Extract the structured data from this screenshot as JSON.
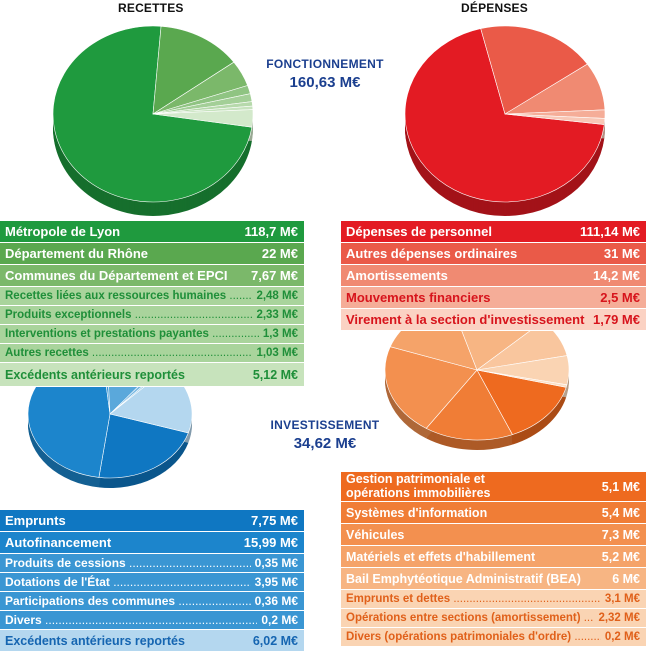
{
  "headers": {
    "recettes": "RECETTES",
    "depenses": "DÉPENSES"
  },
  "fonctionnement": {
    "title": "FONCTIONNEMENT",
    "total": "160,63 M€"
  },
  "investissement": {
    "title": "INVESTISSEMENT",
    "total": "34,62 M€"
  },
  "chart_data": [
    {
      "type": "pie",
      "title": "RECETTES",
      "group": "FONCTIONNEMENT",
      "unit": "M€",
      "categories": [
        "Métropole de Lyon",
        "Département du Rhône",
        "Communes du Département et EPCI",
        "Recettes liées aux ressources humaines",
        "Produits exceptionnels",
        "Interventions et prestations payantes",
        "Autres recettes",
        "Excédents antérieurs reportés"
      ],
      "values": [
        118.7,
        22,
        7.67,
        2.48,
        2.33,
        1.3,
        1.03,
        5.12
      ],
      "value_labels": [
        "118,7 M€",
        "22 M€",
        "7,67 M€",
        "2,48 M€",
        "2,33 M€",
        "1,3 M€",
        "1,03 M€",
        "5,12 M€"
      ],
      "colors": [
        "#1f9a3e",
        "#5aa84f",
        "#7bb86a",
        "#8fc482",
        "#a3cf97",
        "#b6d9ab",
        "#c6e2bd",
        "#d3e9cb"
      ]
    },
    {
      "type": "pie",
      "title": "DÉPENSES",
      "group": "FONCTIONNEMENT",
      "unit": "M€",
      "categories": [
        "Dépenses de personnel",
        "Autres dépenses ordinaires",
        "Amortissements",
        "Mouvements financiers",
        "Virement à la section d'investissement"
      ],
      "values": [
        111.14,
        31,
        14.2,
        2.5,
        1.79
      ],
      "value_labels": [
        "111,14 M€",
        "31 M€",
        "14,2 M€",
        "2,5 M€",
        "1,79 M€"
      ],
      "colors": [
        "#e31b23",
        "#ea5a48",
        "#f08a72",
        "#f5ad98",
        "#f8c7b6"
      ]
    },
    {
      "type": "pie",
      "title": "RECETTES",
      "group": "INVESTISSEMENT",
      "unit": "M€",
      "categories": [
        "Emprunts",
        "Autofinancement",
        "Produits de cessions",
        "Dotations de l'État",
        "Participations des communes",
        "Divers",
        "Excédents antérieurs reportés"
      ],
      "values": [
        7.75,
        15.99,
        0.35,
        3.95,
        0.36,
        0.2,
        6.02
      ],
      "value_labels": [
        "7,75 M€",
        "15,99 M€",
        "0,35 M€",
        "3,95 M€",
        "0,36 M€",
        "0,2 M€",
        "6,02 M€"
      ],
      "colors": [
        "#0f77c2",
        "#1c85cc",
        "#3a96d3",
        "#5aa8db",
        "#7ab9e2",
        "#9ccbea",
        "#b4d7ef"
      ]
    },
    {
      "type": "pie",
      "title": "DÉPENSES",
      "group": "INVESTISSEMENT",
      "unit": "M€",
      "categories": [
        "Gestion patrimoniale et opérations immobilières",
        "Systèmes d'information",
        "Véhicules",
        "Matériels et effets d'habillement",
        "Bail Emphytéotique Administratif (BEA)",
        "Emprunts et dettes",
        "Opérations entre sections (amortissement)",
        "Divers (opérations patrimoniales d'ordre)"
      ],
      "values": [
        5.1,
        5.4,
        7.3,
        5.2,
        6,
        3.1,
        2.32,
        0.2
      ],
      "value_labels": [
        "5,1 M€",
        "5,4 M€",
        "7,3 M€",
        "5,2 M€",
        "6 M€",
        "3,1 M€",
        "2,32 M€",
        "0,2 M€"
      ],
      "colors": [
        "#ee6a1f",
        "#f07d36",
        "#f3904f",
        "#f5a369",
        "#f7b583",
        "#f9c69e",
        "#fad4b3",
        "#fcdfc5"
      ]
    }
  ],
  "tables": {
    "fr": [
      {
        "label": "Métropole de Lyon",
        "value": "118,7 M€"
      },
      {
        "label": "Département du Rhône",
        "value": "22 M€"
      },
      {
        "label": "Communes du Département et EPCI",
        "value": "7,67 M€"
      },
      {
        "label": "Recettes liées aux ressources humaines",
        "value": "2,48 M€"
      },
      {
        "label": "Produits exceptionnels",
        "value": "2,33 M€"
      },
      {
        "label": "Interventions et prestations payantes",
        "value": "1,3 M€"
      },
      {
        "label": "Autres recettes",
        "value": "1,03 M€"
      },
      {
        "label": "Excédents antérieurs reportés",
        "value": "5,12 M€"
      }
    ],
    "fd": [
      {
        "label": "Dépenses de personnel",
        "value": "111,14 M€"
      },
      {
        "label": "Autres dépenses ordinaires",
        "value": "31 M€"
      },
      {
        "label": "Amortissements",
        "value": "14,2 M€"
      },
      {
        "label": "Mouvements financiers",
        "value": "2,5 M€"
      },
      {
        "label": "Virement à la section d'investissement",
        "value": "1,79 M€"
      }
    ],
    "ir": [
      {
        "label": "Emprunts",
        "value": "7,75 M€"
      },
      {
        "label": "Autofinancement",
        "value": "15,99 M€"
      },
      {
        "label": "Produits de cessions",
        "value": "0,35 M€"
      },
      {
        "label": "Dotations de l'État",
        "value": "3,95 M€"
      },
      {
        "label": "Participations des communes",
        "value": "0,36 M€"
      },
      {
        "label": "Divers",
        "value": "0,2 M€"
      },
      {
        "label": "Excédents antérieurs reportés",
        "value": "6,02 M€"
      }
    ],
    "id": [
      {
        "label": "Gestion patrimoniale et\nopérations immobilières",
        "value": "5,1 M€"
      },
      {
        "label": "Systèmes d'information",
        "value": "5,4 M€"
      },
      {
        "label": "Véhicules",
        "value": "7,3 M€"
      },
      {
        "label": "Matériels et effets d'habillement",
        "value": "5,2 M€"
      },
      {
        "label": "Bail Emphytéotique Administratif (BEA)",
        "value": "6 M€"
      },
      {
        "label": "Emprunts et dettes",
        "value": "3,1 M€"
      },
      {
        "label": "Opérations entre sections (amortissement)",
        "value": "2,32 M€"
      },
      {
        "label": "Divers (opérations patrimoniales d'ordre)",
        "value": "0,2 M€"
      }
    ]
  },
  "table_colors": {
    "fr": {
      "bg": [
        "#1f9a3e",
        "#5aa84f",
        "#7bb86a",
        "#a9d49c",
        "#a9d49c",
        "#a9d49c",
        "#a9d49c",
        "#c7e3bc"
      ],
      "fg": [
        "#fff",
        "#fff",
        "#fff",
        "#1f8f39",
        "#1f8f39",
        "#1f8f39",
        "#1f8f39",
        "#1f8f39"
      ]
    },
    "fd": {
      "bg": [
        "#e31b23",
        "#ea5a48",
        "#f08a72",
        "#f5ad98",
        "#fbd2c3"
      ],
      "fg": [
        "#fff",
        "#fff",
        "#fff",
        "#d7141c",
        "#d7141c"
      ]
    },
    "ir": {
      "bg": [
        "#0f77c2",
        "#1c85cc",
        "#3a96d3",
        "#3a96d3",
        "#3a96d3",
        "#3a96d3",
        "#b4d7ef"
      ],
      "fg": [
        "#fff",
        "#fff",
        "#fff",
        "#fff",
        "#fff",
        "#fff",
        "#1565b1"
      ]
    },
    "id": {
      "bg": [
        "#ee6a1f",
        "#f07d36",
        "#f3904f",
        "#f5a369",
        "#f7b583",
        "#fad4b3",
        "#fad4b3",
        "#fad4b3"
      ],
      "fg": [
        "#fff",
        "#fff",
        "#fff",
        "#fff",
        "#fff",
        "#e0601a",
        "#e0601a",
        "#e0601a"
      ]
    }
  }
}
